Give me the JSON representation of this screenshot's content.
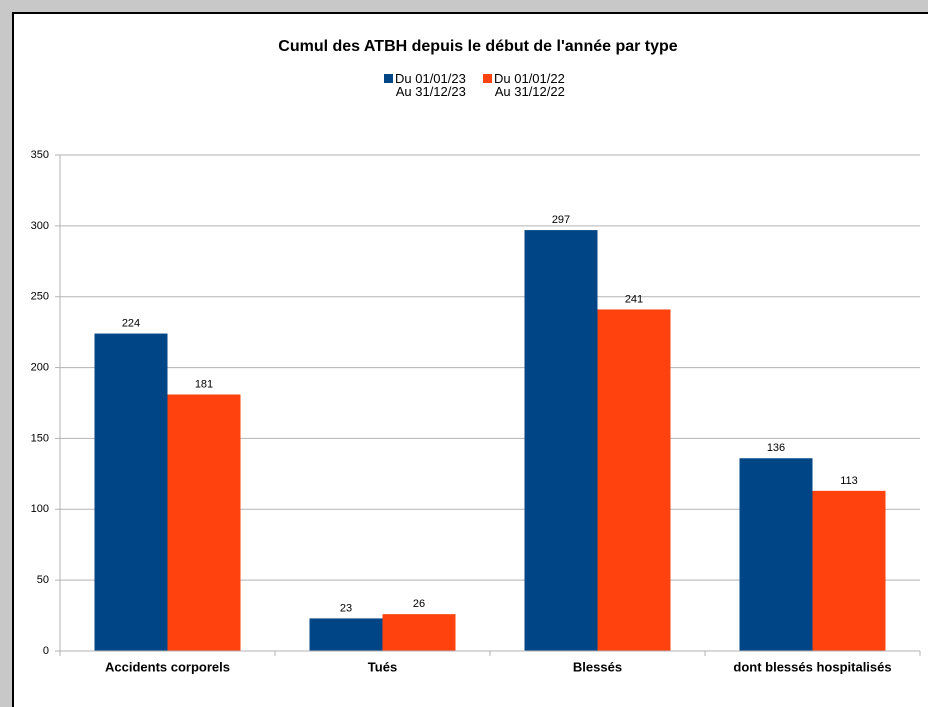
{
  "chart_data": {
    "type": "bar",
    "title": "Cumul des ATBH depuis le début de l'année par type",
    "categories": [
      "Accidents corporels",
      "Tués",
      "Blessés",
      "dont blessés hospitalisés"
    ],
    "series": [
      {
        "name": "Du 01/01/23\nAu 31/12/23",
        "color": "#004586",
        "values": [
          224,
          23,
          297,
          136
        ]
      },
      {
        "name": "Du 01/01/22\nAu 31/12/22",
        "color": "#ff420e",
        "values": [
          181,
          26,
          241,
          113
        ]
      }
    ],
    "ylim": [
      0,
      350
    ],
    "yticks": [
      0,
      50,
      100,
      150,
      200,
      250,
      300,
      350
    ],
    "grid": true
  }
}
